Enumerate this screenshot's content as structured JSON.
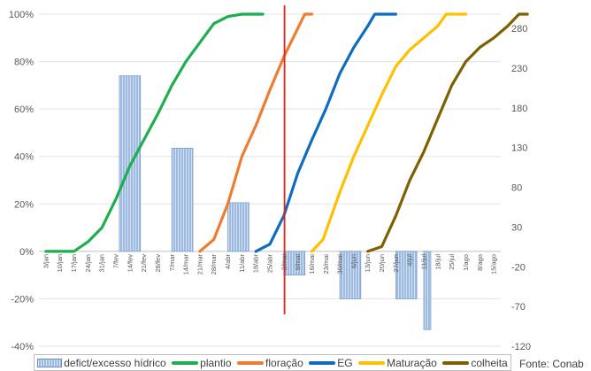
{
  "chart_data": {
    "type": "line",
    "title": "",
    "xlabel": "",
    "ylabel": "",
    "x_ticks": [
      "3/jan",
      "10/jan",
      "17/jan",
      "24/jan",
      "31/jan",
      "7/fev",
      "14/fev",
      "21/fev",
      "28/fev",
      "7/mar",
      "14/mar",
      "21/mar",
      "28/mar",
      "4/abr",
      "11/abr",
      "18/abr",
      "25/abr",
      "2/mai",
      "9/mai",
      "16/mai",
      "23/mai",
      "30/mai",
      "6/jun",
      "13/jun",
      "20/jun",
      "27/jun",
      "4/jul",
      "11/jul",
      "18/jul",
      "25/jul",
      "1/ago",
      "8/ago",
      "15/ago"
    ],
    "y_left": {
      "ticks": [
        "100%",
        "80%",
        "60%",
        "40%",
        "20%",
        "0%",
        "-20%",
        "-40%"
      ],
      "values": [
        100,
        80,
        60,
        40,
        20,
        0,
        -20,
        -40
      ],
      "ylim": [
        -40,
        100
      ]
    },
    "y_right": {
      "ticks": [
        "280",
        "230",
        "180",
        "130",
        "80",
        "30",
        "-20",
        "-70",
        "-120"
      ],
      "values": [
        280,
        230,
        180,
        130,
        80,
        30,
        -20,
        -70,
        -120
      ]
    },
    "marker_line": {
      "x": 17.05,
      "color": "#e2231a"
    },
    "series": [
      {
        "name": "plantio",
        "color": "#1eae4f",
        "points": [
          [
            0,
            0
          ],
          [
            2,
            0
          ],
          [
            3,
            4
          ],
          [
            4,
            10
          ],
          [
            5,
            22
          ],
          [
            6,
            36
          ],
          [
            7,
            47
          ],
          [
            8,
            58
          ],
          [
            9,
            70
          ],
          [
            10,
            80
          ],
          [
            11,
            88
          ],
          [
            12,
            96
          ],
          [
            13,
            99
          ],
          [
            14,
            100
          ],
          [
            15.5,
            100
          ]
        ]
      },
      {
        "name": "floração",
        "color": "#ed7d31",
        "points": [
          [
            11,
            0
          ],
          [
            12,
            5
          ],
          [
            13,
            20
          ],
          [
            14,
            40
          ],
          [
            15,
            53
          ],
          [
            16,
            68
          ],
          [
            17,
            82
          ],
          [
            18,
            94
          ],
          [
            18.5,
            100
          ],
          [
            19,
            100
          ]
        ]
      },
      {
        "name": "EG",
        "color": "#0f6cc0",
        "points": [
          [
            15,
            0
          ],
          [
            16,
            3
          ],
          [
            17,
            15
          ],
          [
            18,
            33
          ],
          [
            19,
            47
          ],
          [
            20,
            60
          ],
          [
            21,
            75
          ],
          [
            22,
            86
          ],
          [
            23,
            95
          ],
          [
            23.5,
            100
          ],
          [
            25,
            100
          ]
        ]
      },
      {
        "name": "Maturação",
        "color": "#ffc000",
        "points": [
          [
            19,
            0
          ],
          [
            19.8,
            5
          ],
          [
            21,
            25
          ],
          [
            22,
            40
          ],
          [
            23,
            53
          ],
          [
            24,
            66
          ],
          [
            25,
            78
          ],
          [
            26,
            85
          ],
          [
            27,
            90
          ],
          [
            28,
            95
          ],
          [
            28.6,
            100
          ],
          [
            30,
            100
          ]
        ]
      },
      {
        "name": "colheita",
        "color": "#7f6000",
        "points": [
          [
            23,
            0
          ],
          [
            24,
            2
          ],
          [
            25,
            15
          ],
          [
            26,
            30
          ],
          [
            27,
            42
          ],
          [
            28,
            56
          ],
          [
            29,
            70
          ],
          [
            30,
            80
          ],
          [
            31,
            86
          ],
          [
            32,
            90
          ],
          [
            33,
            95
          ],
          [
            33.8,
            100
          ],
          [
            34.4,
            100
          ]
        ]
      }
    ],
    "bars": {
      "name": "defict/excesso hídrico",
      "color": "#9dbbe0",
      "items": [
        {
          "x": 5.75,
          "w": 1.5,
          "value": 74
        },
        {
          "x": 9.5,
          "w": 1.5,
          "value": 43.5
        },
        {
          "x": 13.5,
          "w": 1.5,
          "value": 20.5
        },
        {
          "x": 17.5,
          "w": 1.5,
          "value": -10
        },
        {
          "x": 21.5,
          "w": 1.5,
          "value": -20
        },
        {
          "x": 25.5,
          "w": 1.5,
          "value": -20
        },
        {
          "x": 27.5,
          "w": 0.5,
          "value": -33
        }
      ]
    },
    "legend_position": "bottom",
    "grid": true
  },
  "legend": [
    {
      "label": "defict/excesso hídrico",
      "kind": "bar",
      "color": "#9dbbe0"
    },
    {
      "label": "plantio",
      "kind": "line",
      "color": "#1eae4f"
    },
    {
      "label": "floração",
      "kind": "line",
      "color": "#ed7d31"
    },
    {
      "label": "EG",
      "kind": "line",
      "color": "#0f6cc0"
    },
    {
      "label": "Maturação",
      "kind": "line",
      "color": "#ffc000"
    },
    {
      "label": "colheita",
      "kind": "line",
      "color": "#7f6000"
    }
  ],
  "source_label": "Fonte: Conab"
}
